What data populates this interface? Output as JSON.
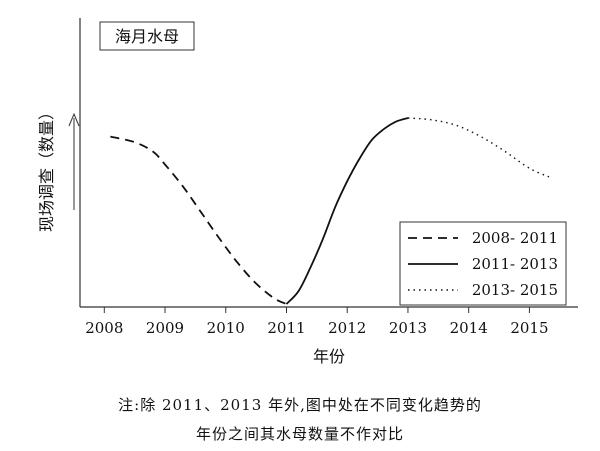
{
  "chart_data": {
    "type": "line",
    "title": "海月水母",
    "xlabel": "年份",
    "ylabel": "现场调查（数量）",
    "categories": [
      "2008",
      "2009",
      "2010",
      "2011",
      "2012",
      "2013",
      "2014",
      "2015"
    ],
    "xlim": [
      2007.6,
      2015.8
    ],
    "ylim": [
      0,
      1
    ],
    "y_ticks_shown": false,
    "grid": false,
    "legend_position": "bottom-right",
    "series": [
      {
        "name": "2008- 2011",
        "style": "dashed",
        "x": [
          2008.1,
          2008.5,
          2008.8,
          2009.0,
          2009.3,
          2009.6,
          2009.9,
          2010.2,
          2010.5,
          2010.8,
          2011.0
        ],
        "y": [
          0.9,
          0.87,
          0.82,
          0.75,
          0.63,
          0.49,
          0.35,
          0.22,
          0.11,
          0.03,
          0.0
        ]
      },
      {
        "name": "2011- 2013",
        "style": "solid",
        "x": [
          2011.0,
          2011.2,
          2011.4,
          2011.6,
          2011.8,
          2012.0,
          2012.2,
          2012.4,
          2012.6,
          2012.8,
          2013.0
        ],
        "y": [
          0.0,
          0.07,
          0.2,
          0.35,
          0.52,
          0.66,
          0.78,
          0.88,
          0.94,
          0.98,
          1.0
        ]
      },
      {
        "name": "2013- 2015",
        "style": "dotted",
        "x": [
          2013.0,
          2013.4,
          2013.8,
          2014.2,
          2014.6,
          2015.0,
          2015.35
        ],
        "y": [
          1.0,
          0.99,
          0.96,
          0.9,
          0.82,
          0.73,
          0.68
        ]
      }
    ]
  },
  "note": {
    "line1": "注:除 2011、2013 年外,图中处在不同变化趋势的",
    "line2": "年份之间其水母数量不作对比"
  },
  "colors": {
    "line": "#111111",
    "axis": "#333333",
    "background": "#ffffff"
  }
}
